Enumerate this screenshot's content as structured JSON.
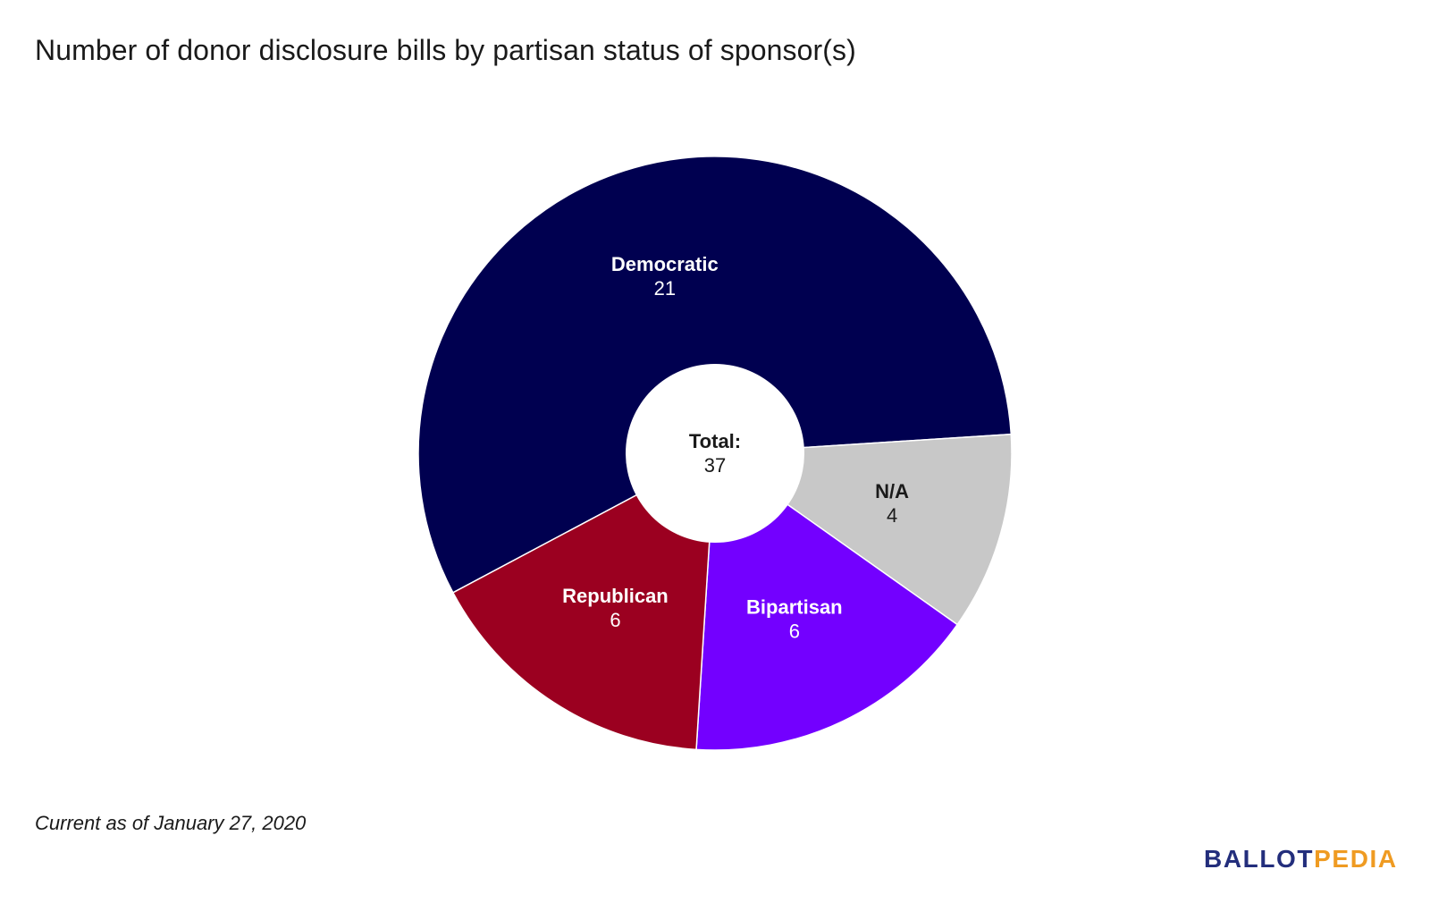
{
  "title": "Number of donor disclosure bills by partisan status of sponsor(s)",
  "footnote": "Current as of January 27, 2020",
  "brand": {
    "part1": "BALLOT",
    "part2": "PEDIA",
    "color1": "#232e7c",
    "color2": "#ef9b22"
  },
  "chart_data": {
    "type": "pie",
    "donut": true,
    "center_label": "Total:",
    "center_value": "37",
    "slices": [
      {
        "label": "Democratic",
        "value": 21,
        "color": "#000050",
        "text_color": "#ffffff"
      },
      {
        "label": "N/A",
        "value": 4,
        "color": "#c8c8c8",
        "text_color": "#1a1a1a"
      },
      {
        "label": "Bipartisan",
        "value": 6,
        "color": "#7300ff",
        "text_color": "#ffffff"
      },
      {
        "label": "Republican",
        "value": 6,
        "color": "#9b0020",
        "text_color": "#ffffff"
      }
    ]
  }
}
